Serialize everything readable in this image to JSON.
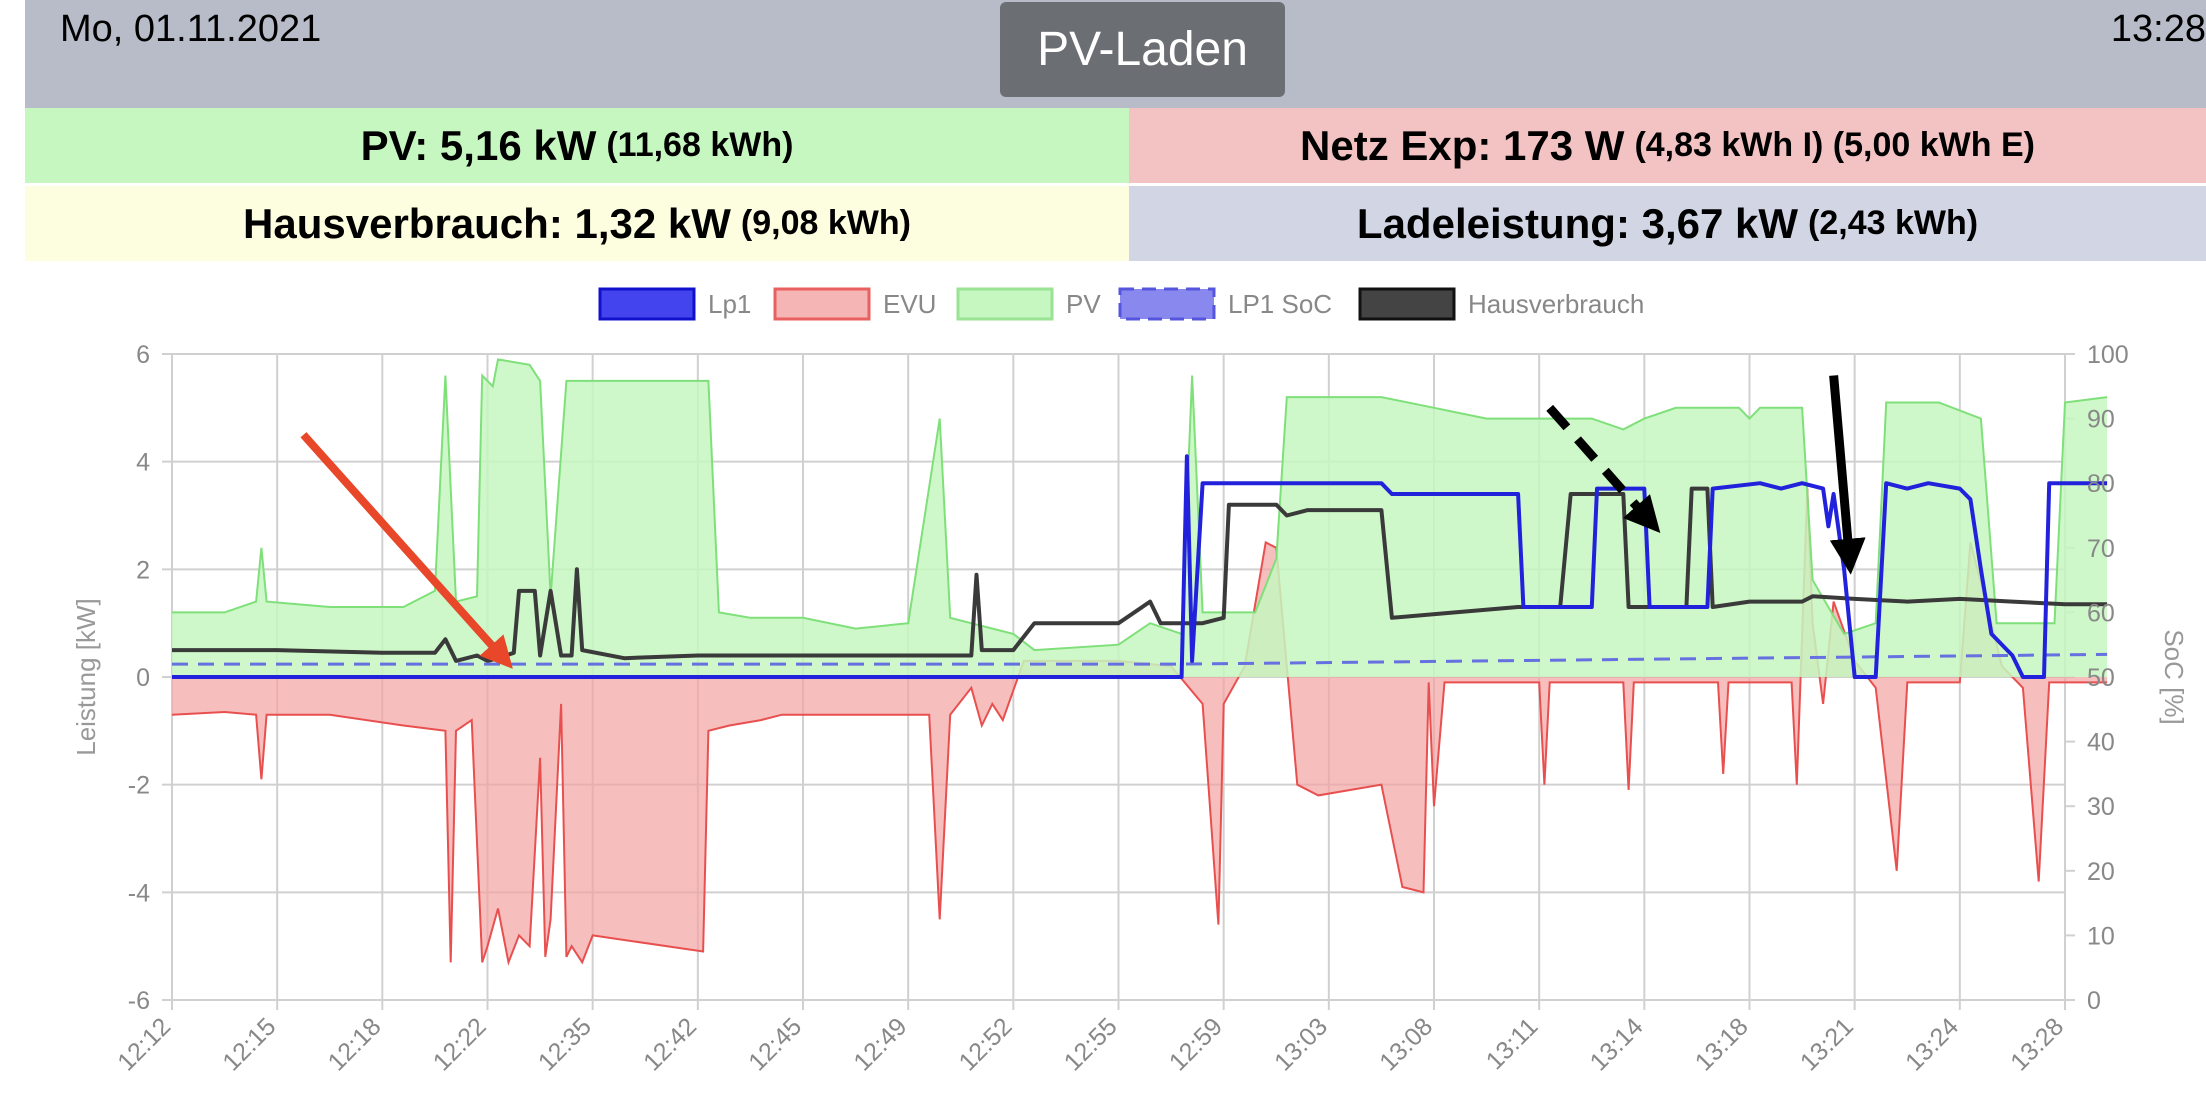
{
  "header": {
    "date": "Mo, 01.11.2021",
    "time": "13:28",
    "mode_label": "PV-Laden"
  },
  "tiles": {
    "pv": {
      "label": "PV: 5,16 kW",
      "detail": "(11,68 kWh)",
      "color": "#c6f7c0"
    },
    "netz": {
      "label": "Netz Exp: 173 W",
      "detail": "(4,83 kWh I) (5,00 kWh E)",
      "color": "#f3c3c3"
    },
    "haus": {
      "label": "Hausverbrauch: 1,32 kW",
      "detail": "(9,08 kWh)",
      "color": "#fdfde0"
    },
    "lade": {
      "label": "Ladeleistung: 3,67 kW",
      "detail": "(2,43 kWh)",
      "color": "#d2d6e4"
    }
  },
  "chart_data": {
    "type": "line",
    "legend_position": "top",
    "grid": true,
    "xlabel": "",
    "ylabel": "Leistung [kW]",
    "ylabel_right": "SoC [%]",
    "ylim": [
      -6,
      6
    ],
    "ylim_right": [
      0,
      100
    ],
    "x_ticks": [
      "12:12",
      "12:15",
      "12:18",
      "12:22",
      "12:35",
      "12:42",
      "12:45",
      "12:49",
      "12:52",
      "12:55",
      "12:59",
      "13:03",
      "13:08",
      "13:11",
      "13:14",
      "13:18",
      "13:21",
      "13:24",
      "13:28"
    ],
    "y_ticks": [
      6,
      4,
      2,
      0,
      -2,
      -4,
      -6
    ],
    "y_ticks_right": [
      100,
      90,
      80,
      70,
      60,
      50,
      40,
      30,
      20,
      10,
      0
    ],
    "series": [
      {
        "name": "Lp1",
        "color": "#2222dd",
        "axis": "left",
        "points": [
          [
            0,
            0
          ],
          [
            9.6,
            0
          ],
          [
            9.65,
            4.1
          ],
          [
            9.7,
            0.3
          ],
          [
            9.8,
            3.6
          ],
          [
            11.5,
            3.6
          ],
          [
            11.6,
            3.4
          ],
          [
            12.8,
            3.4
          ],
          [
            12.85,
            1.3
          ],
          [
            13.5,
            1.3
          ],
          [
            13.55,
            3.5
          ],
          [
            14,
            3.5
          ],
          [
            14.05,
            1.3
          ],
          [
            14.6,
            1.3
          ],
          [
            14.65,
            3.5
          ],
          [
            15.1,
            3.6
          ],
          [
            15.3,
            3.5
          ],
          [
            15.5,
            3.6
          ],
          [
            15.7,
            3.5
          ],
          [
            15.75,
            2.8
          ],
          [
            15.8,
            3.4
          ],
          [
            15.9,
            2.0
          ],
          [
            16.0,
            0
          ],
          [
            16.2,
            0
          ],
          [
            16.3,
            3.6
          ],
          [
            16.5,
            3.5
          ],
          [
            16.7,
            3.6
          ],
          [
            17.0,
            3.5
          ],
          [
            17.1,
            3.3
          ],
          [
            17.2,
            2.0
          ],
          [
            17.3,
            0.8
          ],
          [
            17.5,
            0.4
          ],
          [
            17.6,
            0
          ],
          [
            17.8,
            0
          ],
          [
            17.85,
            3.6
          ],
          [
            18.4,
            3.6
          ]
        ]
      },
      {
        "name": "EVU",
        "color": "#f4a3a3",
        "line_color": "#e8504f",
        "axis": "left",
        "points": [
          [
            0,
            -0.7
          ],
          [
            0.5,
            -0.65
          ],
          [
            0.8,
            -0.7
          ],
          [
            0.85,
            -1.9
          ],
          [
            0.9,
            -0.7
          ],
          [
            1.5,
            -0.7
          ],
          [
            2.2,
            -0.9
          ],
          [
            2.6,
            -1.0
          ],
          [
            2.65,
            -5.3
          ],
          [
            2.7,
            -1.0
          ],
          [
            2.85,
            -0.8
          ],
          [
            2.95,
            -5.3
          ],
          [
            3.0,
            -5.0
          ],
          [
            3.1,
            -4.3
          ],
          [
            3.2,
            -5.3
          ],
          [
            3.3,
            -4.8
          ],
          [
            3.4,
            -5.0
          ],
          [
            3.5,
            -1.5
          ],
          [
            3.55,
            -5.2
          ],
          [
            3.6,
            -4.5
          ],
          [
            3.7,
            -0.5
          ],
          [
            3.75,
            -5.2
          ],
          [
            3.8,
            -5.0
          ],
          [
            3.9,
            -5.3
          ],
          [
            4.0,
            -4.8
          ],
          [
            5.05,
            -5.1
          ],
          [
            5.1,
            -1.0
          ],
          [
            5.3,
            -0.9
          ],
          [
            5.6,
            -0.8
          ],
          [
            5.8,
            -0.7
          ],
          [
            6.5,
            -0.7
          ],
          [
            7.2,
            -0.7
          ],
          [
            7.3,
            -4.5
          ],
          [
            7.4,
            -0.7
          ],
          [
            7.6,
            -0.2
          ],
          [
            7.7,
            -0.9
          ],
          [
            7.8,
            -0.5
          ],
          [
            7.9,
            -0.8
          ],
          [
            8.1,
            0.3
          ],
          [
            9.0,
            0.3
          ],
          [
            9.5,
            0.2
          ],
          [
            9.8,
            -0.5
          ],
          [
            9.95,
            -4.6
          ],
          [
            10.0,
            -0.5
          ],
          [
            10.2,
            0.2
          ],
          [
            10.4,
            2.5
          ],
          [
            10.5,
            2.4
          ],
          [
            10.6,
            0.2
          ],
          [
            10.7,
            -2.0
          ],
          [
            10.9,
            -2.2
          ],
          [
            11.5,
            -2.0
          ],
          [
            11.7,
            -3.9
          ],
          [
            11.9,
            -4.0
          ],
          [
            11.95,
            -0.1
          ],
          [
            12.0,
            -2.4
          ],
          [
            12.1,
            -0.1
          ],
          [
            13.0,
            -0.1
          ],
          [
            13.05,
            -2.0
          ],
          [
            13.1,
            -0.1
          ],
          [
            13.8,
            -0.1
          ],
          [
            13.85,
            -2.1
          ],
          [
            13.9,
            -0.1
          ],
          [
            14.7,
            -0.1
          ],
          [
            14.75,
            -1.8
          ],
          [
            14.8,
            -0.1
          ],
          [
            15.4,
            -0.1
          ],
          [
            15.45,
            -2.0
          ],
          [
            15.55,
            3.5
          ],
          [
            15.6,
            1.0
          ],
          [
            15.7,
            -0.5
          ],
          [
            15.8,
            1.4
          ],
          [
            16.0,
            0.3
          ],
          [
            16.2,
            -0.2
          ],
          [
            16.4,
            -3.6
          ],
          [
            16.5,
            -0.1
          ],
          [
            17.0,
            -0.1
          ],
          [
            17.1,
            2.5
          ],
          [
            17.3,
            1.0
          ],
          [
            17.4,
            0.2
          ],
          [
            17.6,
            -0.2
          ],
          [
            17.75,
            -3.8
          ],
          [
            17.85,
            -0.1
          ],
          [
            18.4,
            -0.1
          ]
        ]
      },
      {
        "name": "PV",
        "color": "#c6f7c0",
        "line_color": "#7fe07a",
        "axis": "left",
        "points": [
          [
            0,
            1.2
          ],
          [
            0.5,
            1.2
          ],
          [
            0.8,
            1.4
          ],
          [
            0.85,
            2.4
          ],
          [
            0.9,
            1.4
          ],
          [
            1.5,
            1.3
          ],
          [
            2.2,
            1.3
          ],
          [
            2.5,
            1.6
          ],
          [
            2.6,
            5.6
          ],
          [
            2.7,
            1.4
          ],
          [
            2.9,
            1.5
          ],
          [
            2.95,
            5.6
          ],
          [
            3.05,
            5.4
          ],
          [
            3.1,
            5.9
          ],
          [
            3.4,
            5.8
          ],
          [
            3.5,
            5.5
          ],
          [
            3.6,
            1.5
          ],
          [
            3.75,
            5.5
          ],
          [
            4.0,
            5.5
          ],
          [
            5.1,
            5.5
          ],
          [
            5.2,
            1.2
          ],
          [
            5.5,
            1.1
          ],
          [
            6.0,
            1.1
          ],
          [
            6.5,
            0.9
          ],
          [
            7.0,
            1.0
          ],
          [
            7.3,
            4.8
          ],
          [
            7.4,
            1.1
          ],
          [
            8.0,
            0.8
          ],
          [
            8.2,
            0.5
          ],
          [
            9.0,
            0.6
          ],
          [
            9.3,
            1.0
          ],
          [
            9.6,
            0.8
          ],
          [
            9.7,
            5.6
          ],
          [
            9.8,
            1.2
          ],
          [
            10.3,
            1.2
          ],
          [
            10.5,
            2.2
          ],
          [
            10.6,
            5.2
          ],
          [
            11.0,
            5.2
          ],
          [
            11.5,
            5.2
          ],
          [
            12.0,
            5.0
          ],
          [
            12.5,
            4.8
          ],
          [
            13.0,
            4.8
          ],
          [
            13.5,
            4.8
          ],
          [
            13.8,
            4.6
          ],
          [
            14.0,
            4.8
          ],
          [
            14.3,
            5.0
          ],
          [
            14.9,
            5.0
          ],
          [
            15.0,
            4.8
          ],
          [
            15.1,
            5.0
          ],
          [
            15.5,
            5.0
          ],
          [
            15.6,
            1.8
          ],
          [
            15.9,
            0.8
          ],
          [
            16.2,
            1.0
          ],
          [
            16.3,
            5.1
          ],
          [
            16.8,
            5.1
          ],
          [
            17.2,
            4.8
          ],
          [
            17.35,
            1.0
          ],
          [
            17.9,
            1.0
          ],
          [
            18.0,
            5.1
          ],
          [
            18.4,
            5.2
          ]
        ]
      },
      {
        "name": "LP1 SoC",
        "color": "#6670e0",
        "axis": "right",
        "dashed": true,
        "points": [
          [
            0,
            52
          ],
          [
            9.6,
            52
          ],
          [
            18.4,
            53.5
          ]
        ]
      },
      {
        "name": "Hausverbrauch",
        "color": "#3a3a3a",
        "axis": "left",
        "points": [
          [
            0,
            0.5
          ],
          [
            1.0,
            0.5
          ],
          [
            2.0,
            0.45
          ],
          [
            2.5,
            0.45
          ],
          [
            2.6,
            0.7
          ],
          [
            2.7,
            0.3
          ],
          [
            2.9,
            0.4
          ],
          [
            3.0,
            0.3
          ],
          [
            3.1,
            0.35
          ],
          [
            3.25,
            0.45
          ],
          [
            3.3,
            1.6
          ],
          [
            3.45,
            1.6
          ],
          [
            3.5,
            0.4
          ],
          [
            3.6,
            1.6
          ],
          [
            3.7,
            0.4
          ],
          [
            3.8,
            0.4
          ],
          [
            3.85,
            2.0
          ],
          [
            3.9,
            0.5
          ],
          [
            4.3,
            0.35
          ],
          [
            5.0,
            0.4
          ],
          [
            6.0,
            0.4
          ],
          [
            7.0,
            0.4
          ],
          [
            7.6,
            0.4
          ],
          [
            7.65,
            1.9
          ],
          [
            7.7,
            0.5
          ],
          [
            8.0,
            0.5
          ],
          [
            8.2,
            1.0
          ],
          [
            8.5,
            1.0
          ],
          [
            9.0,
            1.0
          ],
          [
            9.3,
            1.4
          ],
          [
            9.4,
            1.0
          ],
          [
            9.8,
            1.0
          ],
          [
            10.0,
            1.1
          ],
          [
            10.05,
            3.2
          ],
          [
            10.5,
            3.2
          ],
          [
            10.6,
            3.0
          ],
          [
            10.8,
            3.1
          ],
          [
            11.5,
            3.1
          ],
          [
            11.6,
            1.1
          ],
          [
            12.2,
            1.2
          ],
          [
            12.8,
            1.3
          ],
          [
            13.2,
            1.3
          ],
          [
            13.3,
            3.4
          ],
          [
            13.5,
            3.4
          ],
          [
            13.8,
            3.4
          ],
          [
            13.85,
            1.3
          ],
          [
            14.4,
            1.3
          ],
          [
            14.45,
            3.5
          ],
          [
            14.6,
            3.5
          ],
          [
            14.65,
            1.3
          ],
          [
            15.0,
            1.4
          ],
          [
            15.5,
            1.4
          ],
          [
            15.6,
            1.5
          ],
          [
            16.0,
            1.45
          ],
          [
            16.5,
            1.4
          ],
          [
            17.0,
            1.45
          ],
          [
            17.5,
            1.4
          ],
          [
            18.0,
            1.35
          ],
          [
            18.4,
            1.35
          ]
        ]
      }
    ],
    "annotations": [
      {
        "type": "arrow",
        "color": "#e8472a",
        "from": [
          1.25,
          4.5
        ],
        "to": [
          3.15,
          0.35
        ],
        "dashed": false
      },
      {
        "type": "arrow",
        "color": "#000000",
        "from": [
          13.1,
          5.0
        ],
        "to": [
          14.05,
          2.9
        ],
        "dashed": true
      },
      {
        "type": "arrow",
        "color": "#000000",
        "from": [
          15.8,
          5.6
        ],
        "to": [
          15.95,
          2.2
        ],
        "dashed": false
      }
    ]
  }
}
